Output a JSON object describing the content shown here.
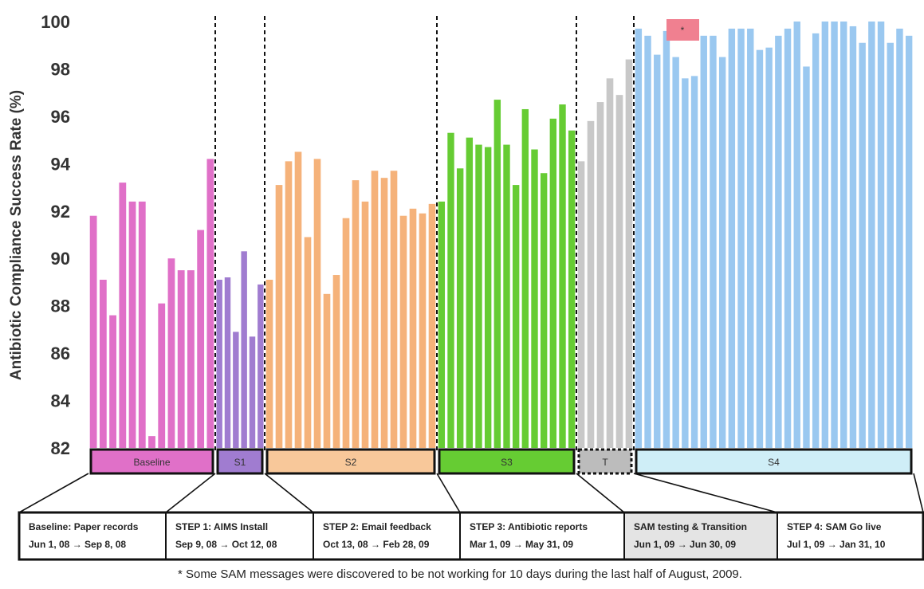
{
  "chart_data": {
    "type": "bar",
    "title": "",
    "ylabel": "Antibiotic Compliance Success Rate (%)",
    "xlabel": "",
    "ylim": [
      82,
      100
    ],
    "yticks": [
      82,
      84,
      86,
      88,
      90,
      92,
      94,
      96,
      98,
      100
    ],
    "grid": false,
    "segments": [
      {
        "label": "Baseline",
        "color": "#e070c8",
        "phase_name": "Baseline: Paper records",
        "phase_dates": "Jun 1, 08 → Sep 8, 08",
        "values": [
          91.8,
          89.1,
          87.6,
          93.2,
          92.4,
          92.4,
          82.5,
          88.1,
          90.0,
          89.5,
          89.5,
          91.2,
          94.2
        ]
      },
      {
        "label": "S1",
        "color": "#a07cd0",
        "phase_name": "STEP 1: AIMS Install",
        "phase_dates": "Sep 9, 08 → Oct 12, 08",
        "values": [
          89.1,
          89.2,
          86.9,
          90.3,
          86.7,
          88.9
        ]
      },
      {
        "label": "S2",
        "color": "#f5b27a",
        "phase_name": "STEP 2: Email feedback",
        "phase_dates": "Oct 13, 08 → Feb 28, 09",
        "values": [
          89.1,
          93.1,
          94.1,
          94.5,
          90.9,
          94.2,
          88.5,
          89.3,
          91.7,
          93.3,
          92.4,
          93.7,
          93.4,
          93.7,
          91.8,
          92.1,
          91.9,
          92.3
        ]
      },
      {
        "label": "S3",
        "color": "#66cc33",
        "phase_name": "STEP 3: Antibiotic reports",
        "phase_dates": "Mar 1, 09 → May 31, 09",
        "values": [
          92.4,
          95.3,
          93.8,
          95.1,
          94.8,
          94.7,
          96.7,
          94.8,
          93.1,
          96.3,
          94.6,
          93.6,
          95.9,
          96.5,
          95.4
        ]
      },
      {
        "label": "T",
        "color": "#c8c8c8",
        "phase_name": "SAM testing & Transition",
        "phase_dates": "Jun 1, 09 → Jun 30, 09",
        "values": [
          94.1,
          95.8,
          96.6,
          97.6,
          96.9,
          98.4
        ]
      },
      {
        "label": "S4",
        "color": "#9ac8f0",
        "phase_name": "STEP 4: SAM Go live",
        "phase_dates": "Jul 1, 09 → Jan 31, 10",
        "values": [
          99.7,
          99.4,
          98.6,
          99.6,
          98.5,
          97.6,
          97.7,
          99.4,
          99.4,
          98.5,
          99.7,
          99.7,
          99.7,
          98.8,
          98.9,
          99.4,
          99.7,
          100.0,
          98.1,
          99.5,
          100.0,
          100.0,
          100.0,
          99.8,
          99.1,
          100.0,
          100.0,
          99.1,
          99.7,
          99.4
        ]
      }
    ],
    "annotation_marker": "*",
    "annotation_color": "#f08090",
    "footnote": "* Some SAM messages were discovered to be not working for 10 days during the last half of August, 2009."
  }
}
